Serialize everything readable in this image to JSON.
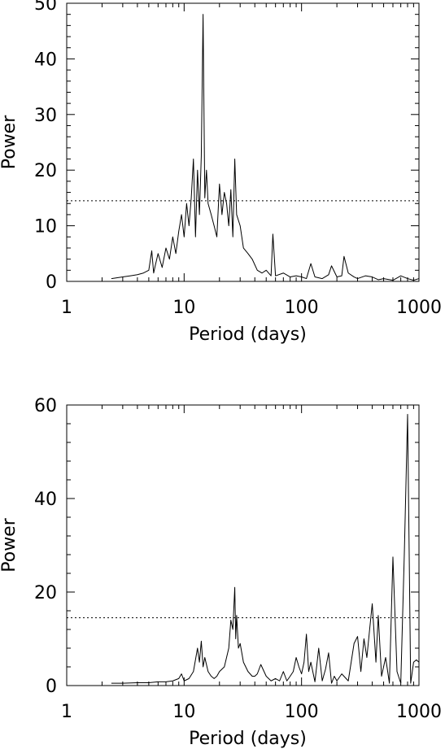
{
  "chart_data": [
    {
      "type": "line",
      "title": "",
      "xlabel": "Period (days)",
      "ylabel": "Power",
      "xscale": "log",
      "xlim": [
        1,
        1000
      ],
      "ylim": [
        0,
        50
      ],
      "xticks": [
        1,
        10,
        100,
        1000
      ],
      "xtick_labels": [
        "1",
        "10",
        "100",
        "1000"
      ],
      "yticks": [
        0,
        10,
        20,
        30,
        40,
        50
      ],
      "ytick_labels": [
        "0",
        "10",
        "20",
        "30",
        "40",
        "50"
      ],
      "grid": false,
      "threshold": 14.5,
      "series": [
        {
          "x": [
            2.4,
            3,
            3.5,
            4,
            4.5,
            5,
            5.3,
            5.5,
            5.7,
            6,
            6.5,
            7,
            7.5,
            8,
            8.5,
            9,
            9.5,
            10,
            10.5,
            11,
            11.5,
            12,
            12.5,
            13,
            13.5,
            14,
            14.5,
            15,
            15.5,
            16,
            17,
            18,
            19,
            20,
            21,
            22,
            23,
            24,
            25,
            26,
            27,
            28,
            30,
            32,
            35,
            38,
            42,
            46,
            50,
            55,
            57,
            60,
            70,
            80,
            90,
            100,
            110,
            120,
            130,
            150,
            170,
            180,
            200,
            220,
            230,
            250,
            280,
            300,
            350,
            400,
            450,
            500,
            600,
            700,
            800,
            900,
            1000
          ],
          "y": [
            0.5,
            0.8,
            1.0,
            1.2,
            1.5,
            2.0,
            5.5,
            1.5,
            3.0,
            5.0,
            2.5,
            6.0,
            4.0,
            8.0,
            5.0,
            9.0,
            12.0,
            8.0,
            14.0,
            10.0,
            15.0,
            22.0,
            8.0,
            20.0,
            12.0,
            22.5,
            48.0,
            15.0,
            20.0,
            14.0,
            12.0,
            10.0,
            8.0,
            17.5,
            12.0,
            16.0,
            14.0,
            10.0,
            16.5,
            8.0,
            22.0,
            12.0,
            10.0,
            6.0,
            5.0,
            4.0,
            2.0,
            1.5,
            2.0,
            1.0,
            8.5,
            1.0,
            1.5,
            0.8,
            1.0,
            0.8,
            0.5,
            3.2,
            0.8,
            0.5,
            1.2,
            2.8,
            0.8,
            1.0,
            4.5,
            1.5,
            0.8,
            0.5,
            1.0,
            0.8,
            0.3,
            0.5,
            0.2,
            1.0,
            0.5,
            0.2,
            0.5
          ]
        }
      ]
    },
    {
      "type": "line",
      "title": "",
      "xlabel": "Period (days)",
      "ylabel": "Power",
      "xscale": "log",
      "xlim": [
        1,
        1000
      ],
      "ylim": [
        0,
        60
      ],
      "xticks": [
        1,
        10,
        100,
        1000
      ],
      "xtick_labels": [
        "1",
        "10",
        "100",
        "1000"
      ],
      "yticks": [
        0,
        20,
        40,
        60
      ],
      "ytick_labels": [
        "0",
        "20",
        "40",
        "60"
      ],
      "grid": false,
      "threshold": 14.5,
      "series": [
        {
          "x": [
            2.4,
            3,
            4,
            5,
            6,
            7,
            8,
            9,
            9.5,
            10,
            11,
            12,
            13,
            13.5,
            14,
            14.5,
            15,
            16,
            17,
            18,
            19,
            20,
            22,
            24,
            25,
            26,
            27,
            27.5,
            28,
            29,
            30,
            32,
            35,
            38,
            40,
            42,
            45,
            50,
            55,
            60,
            65,
            70,
            75,
            80,
            85,
            90,
            95,
            100,
            105,
            110,
            115,
            120,
            130,
            140,
            150,
            160,
            170,
            180,
            190,
            200,
            220,
            250,
            280,
            300,
            320,
            340,
            360,
            380,
            400,
            430,
            450,
            480,
            520,
            560,
            600,
            650,
            700,
            750,
            800,
            850,
            900,
            950,
            1000
          ],
          "y": [
            0.5,
            0.5,
            0.6,
            0.6,
            0.8,
            0.8,
            1.0,
            1.5,
            2.5,
            1.0,
            1.5,
            3.0,
            8.0,
            5.0,
            9.5,
            4.0,
            6.0,
            3.0,
            2.0,
            1.5,
            2.0,
            3.0,
            4.0,
            8.0,
            14.0,
            12.0,
            21.0,
            10.0,
            15.0,
            8.0,
            9.0,
            5.0,
            3.0,
            2.0,
            2.0,
            2.5,
            4.5,
            2.0,
            1.0,
            1.5,
            1.0,
            3.0,
            1.0,
            2.0,
            3.0,
            6.0,
            4.0,
            2.5,
            5.0,
            11.0,
            3.0,
            5.0,
            0.8,
            8.0,
            1.0,
            3.5,
            7.0,
            0.5,
            2.0,
            1.0,
            2.5,
            1.0,
            9.0,
            10.5,
            3.0,
            10.0,
            6.0,
            12.0,
            17.5,
            5.0,
            15.0,
            2.0,
            6.0,
            0.5,
            27.5,
            3.0,
            0.5,
            28.0,
            58.0,
            0.5,
            5.0,
            5.5,
            5.0
          ]
        }
      ]
    }
  ]
}
